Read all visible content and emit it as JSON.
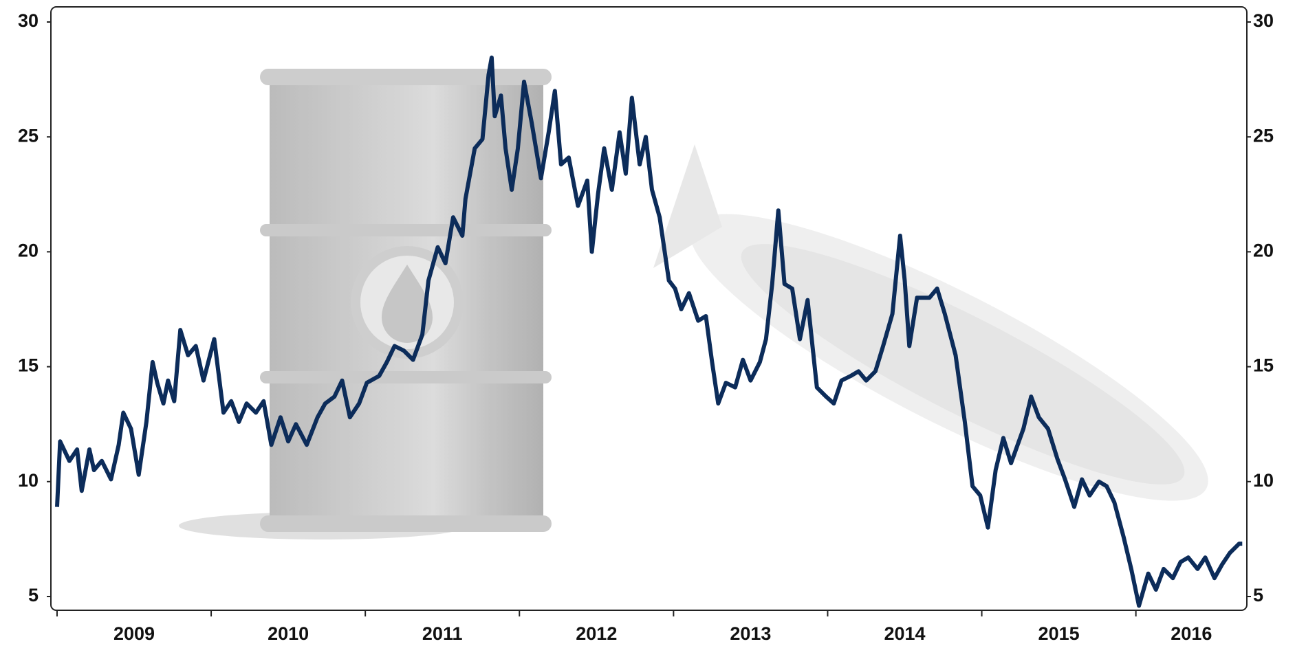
{
  "chart_data": {
    "type": "line",
    "x": [
      2009.0,
      2009.02,
      2009.08,
      2009.13,
      2009.16,
      2009.21,
      2009.24,
      2009.29,
      2009.35,
      2009.4,
      2009.43,
      2009.48,
      2009.53,
      2009.58,
      2009.62,
      2009.65,
      2009.69,
      2009.72,
      2009.76,
      2009.8,
      2009.85,
      2009.9,
      2009.95,
      2010.02,
      2010.08,
      2010.13,
      2010.18,
      2010.23,
      2010.29,
      2010.34,
      2010.39,
      2010.45,
      2010.5,
      2010.55,
      2010.62,
      2010.69,
      2010.74,
      2010.8,
      2010.85,
      2010.9,
      2010.96,
      2011.01,
      2011.09,
      2011.14,
      2011.19,
      2011.25,
      2011.31,
      2011.37,
      2011.41,
      2011.47,
      2011.52,
      2011.57,
      2011.63,
      2011.65,
      2011.71,
      2011.76,
      2011.8,
      2011.82,
      2011.84,
      2011.88,
      2011.91,
      2011.95,
      2011.99,
      2012.03,
      2012.08,
      2012.14,
      2012.19,
      2012.23,
      2012.27,
      2012.32,
      2012.38,
      2012.44,
      2012.47,
      2012.51,
      2012.55,
      2012.6,
      2012.65,
      2012.69,
      2012.73,
      2012.78,
      2012.82,
      2012.86,
      2012.91,
      2012.97,
      2013.01,
      2013.05,
      2013.1,
      2013.16,
      2013.21,
      2013.25,
      2013.29,
      2013.34,
      2013.4,
      2013.45,
      2013.5,
      2013.56,
      2013.6,
      2013.64,
      2013.68,
      2013.72,
      2013.77,
      2013.82,
      2013.87,
      2013.93,
      2013.99,
      2014.04,
      2014.09,
      2014.15,
      2014.2,
      2014.25,
      2014.31,
      2014.36,
      2014.42,
      2014.47,
      2014.5,
      2014.53,
      2014.58,
      2014.66,
      2014.71,
      2014.76,
      2014.83,
      2014.89,
      2014.94,
      2014.99,
      2015.04,
      2015.09,
      2015.14,
      2015.19,
      2015.27,
      2015.32,
      2015.37,
      2015.43,
      2015.49,
      2015.54,
      2015.6,
      2015.65,
      2015.7,
      2015.76,
      2015.81,
      2015.86,
      2015.92,
      2015.97,
      2016.02,
      2016.08,
      2016.13,
      2016.18,
      2016.24,
      2016.29,
      2016.34,
      2016.4,
      2016.45,
      2016.51,
      2016.56,
      2016.61,
      2016.67,
      2016.69
    ],
    "series": [
      {
        "color": "#0c2c5a",
        "values": [
          8.9,
          11.75,
          10.9,
          11.4,
          9.6,
          11.4,
          10.5,
          10.9,
          10.1,
          11.6,
          13.0,
          12.3,
          10.3,
          12.6,
          15.2,
          14.3,
          13.4,
          14.4,
          13.5,
          16.6,
          15.5,
          15.9,
          14.4,
          16.2,
          13.0,
          13.5,
          12.6,
          13.4,
          13.0,
          13.5,
          11.6,
          12.8,
          11.75,
          12.5,
          11.6,
          12.8,
          13.4,
          13.7,
          14.4,
          12.8,
          13.4,
          14.3,
          14.6,
          15.2,
          15.9,
          15.7,
          15.3,
          16.4,
          18.75,
          20.2,
          19.5,
          21.5,
          20.7,
          22.3,
          24.5,
          24.9,
          27.7,
          28.45,
          25.9,
          26.8,
          24.5,
          22.7,
          24.5,
          27.4,
          25.6,
          23.2,
          25.2,
          27.0,
          23.8,
          24.1,
          22.0,
          23.1,
          20.0,
          22.5,
          24.5,
          22.7,
          25.2,
          23.4,
          26.7,
          23.8,
          25.0,
          22.7,
          21.5,
          18.75,
          18.4,
          17.5,
          18.2,
          17.0,
          17.2,
          15.2,
          13.4,
          14.3,
          14.1,
          15.3,
          14.4,
          15.2,
          16.2,
          18.6,
          21.8,
          18.6,
          18.4,
          16.2,
          17.9,
          14.1,
          13.7,
          13.4,
          14.4,
          14.6,
          14.8,
          14.4,
          14.8,
          15.9,
          17.3,
          20.7,
          18.75,
          15.9,
          18.0,
          18.0,
          18.4,
          17.3,
          15.5,
          12.6,
          9.8,
          9.4,
          8.0,
          10.5,
          11.9,
          10.8,
          12.3,
          13.7,
          12.8,
          12.3,
          11.0,
          10.1,
          8.9,
          10.1,
          9.4,
          10.0,
          9.8,
          9.1,
          7.6,
          6.2,
          4.6,
          6.0,
          5.3,
          6.2,
          5.8,
          6.5,
          6.7,
          6.2,
          6.7,
          5.8,
          6.4,
          6.9,
          7.3,
          7.3
        ]
      }
    ],
    "xlim": [
      2008.96,
      2016.72
    ],
    "xticks": [
      2009,
      2010,
      2011,
      2012,
      2013,
      2014,
      2015,
      2016
    ],
    "ylim": [
      5,
      30
    ],
    "yticks": [
      5,
      10,
      15,
      20,
      25,
      30
    ],
    "y2lim": [
      5,
      30
    ],
    "y2ticks": [
      5,
      10,
      15,
      20,
      25,
      30
    ]
  }
}
